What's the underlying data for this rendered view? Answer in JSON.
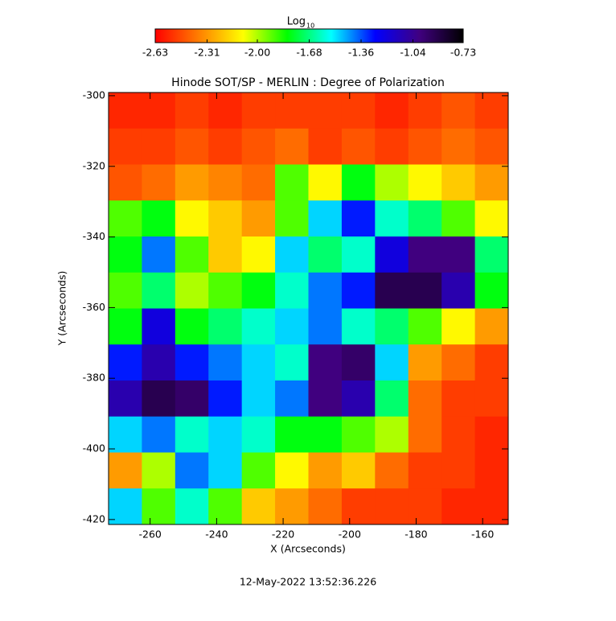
{
  "chart_data": {
    "type": "heatmap",
    "title": "Hinode SOT/SP - MERLIN : Degree of Polarization",
    "x_label": "X (Arcseconds)",
    "y_label": "Y (Arcseconds)",
    "footer": "12-May-2022 13:52:36.226",
    "colorbar_label": "Log",
    "colorbar_label_sub": "10",
    "colorbar_ticks": [
      -2.63,
      -2.31,
      {
        "value": -2,
        "label": "-2.00"
      },
      -1.68,
      -1.36,
      -1.04,
      -0.73
    ],
    "zlim": [
      -2.63,
      -0.73
    ],
    "colormap": [
      "#ff0000",
      "#ff8000",
      "#ffff00",
      "#00ff00",
      "#00ffff",
      "#0000ff",
      "#400080",
      "#000000"
    ],
    "xlim": [
      -272.5,
      -152.3
    ],
    "xticks": [
      -260,
      -240,
      -220,
      -200,
      -180,
      -160
    ],
    "ylim": [
      -421.4,
      -299.1
    ],
    "yticks": [
      -300,
      -320,
      -340,
      -360,
      -380,
      -400,
      -420
    ],
    "values": [
      [
        -2.55,
        -2.55,
        -2.5,
        -2.55,
        -2.5,
        -2.5,
        -2.5,
        -2.5,
        -2.55,
        -2.5,
        -2.45,
        -2.5
      ],
      [
        -2.5,
        -2.5,
        -2.45,
        -2.5,
        -2.45,
        -2.4,
        -2.5,
        -2.45,
        -2.5,
        -2.45,
        -2.4,
        -2.45
      ],
      [
        -2.45,
        -2.4,
        -2.3,
        -2.35,
        -2.4,
        -1.9,
        -2.1,
        -1.8,
        -2.0,
        -2.1,
        -2.2,
        -2.3
      ],
      [
        -1.9,
        -1.8,
        -2.1,
        -2.2,
        -2.3,
        -1.9,
        -1.5,
        -1.3,
        -1.6,
        -1.7,
        -1.9,
        -2.1
      ],
      [
        -1.8,
        -1.4,
        -1.9,
        -2.2,
        -2.1,
        -1.5,
        -1.7,
        -1.6,
        -1.2,
        -1.0,
        -1.0,
        -1.7
      ],
      [
        -1.9,
        -1.7,
        -2.0,
        -1.9,
        -1.8,
        -1.6,
        -1.4,
        -1.3,
        -0.9,
        -0.9,
        -1.1,
        -1.8
      ],
      [
        -1.8,
        -1.2,
        -1.8,
        -1.7,
        -1.6,
        -1.5,
        -1.4,
        -1.6,
        -1.7,
        -1.9,
        -2.1,
        -2.3
      ],
      [
        -1.3,
        -1.1,
        -1.3,
        -1.4,
        -1.5,
        -1.6,
        -1.0,
        -0.95,
        -1.5,
        -2.3,
        -2.4,
        -2.5
      ],
      [
        -1.1,
        -0.9,
        -0.95,
        -1.3,
        -1.5,
        -1.4,
        -1.0,
        -1.1,
        -1.7,
        -2.4,
        -2.5,
        -2.5
      ],
      [
        -1.5,
        -1.4,
        -1.6,
        -1.5,
        -1.6,
        -1.8,
        -1.8,
        -1.9,
        -2.0,
        -2.4,
        -2.5,
        -2.55
      ],
      [
        -2.3,
        -2.0,
        -1.4,
        -1.5,
        -1.9,
        -2.1,
        -2.3,
        -2.2,
        -2.4,
        -2.5,
        -2.5,
        -2.55
      ],
      [
        -1.5,
        -1.9,
        -1.6,
        -1.9,
        -2.2,
        -2.3,
        -2.4,
        -2.5,
        -2.5,
        -2.5,
        -2.55,
        -2.55
      ]
    ]
  }
}
